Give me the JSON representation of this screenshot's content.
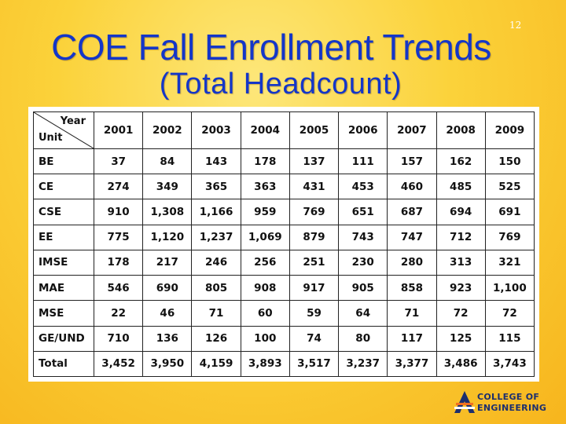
{
  "slide": {
    "number": "12",
    "title_line1": "COE Fall Enrollment Trends",
    "title_line2": "(Total Headcount)"
  },
  "table": {
    "corner_top": "Year",
    "corner_bottom": "Unit",
    "years": [
      "2001",
      "2002",
      "2003",
      "2004",
      "2005",
      "2006",
      "2007",
      "2008",
      "2009"
    ],
    "rows": [
      {
        "unit": "BE",
        "values": [
          "37",
          "84",
          "143",
          "178",
          "137",
          "111",
          "157",
          "162",
          "150"
        ]
      },
      {
        "unit": "CE",
        "values": [
          "274",
          "349",
          "365",
          "363",
          "431",
          "453",
          "460",
          "485",
          "525"
        ]
      },
      {
        "unit": "CSE",
        "values": [
          "910",
          "1,308",
          "1,166",
          "959",
          "769",
          "651",
          "687",
          "694",
          "691"
        ]
      },
      {
        "unit": "EE",
        "values": [
          "775",
          "1,120",
          "1,237",
          "1,069",
          "879",
          "743",
          "747",
          "712",
          "769"
        ]
      },
      {
        "unit": "IMSE",
        "values": [
          "178",
          "217",
          "246",
          "256",
          "251",
          "230",
          "280",
          "313",
          "321"
        ]
      },
      {
        "unit": "MAE",
        "values": [
          "546",
          "690",
          "805",
          "908",
          "917",
          "905",
          "858",
          "923",
          "1,100"
        ]
      },
      {
        "unit": "MSE",
        "values": [
          "22",
          "46",
          "71",
          "60",
          "59",
          "64",
          "71",
          "72",
          "72"
        ]
      },
      {
        "unit": "GE/UND",
        "values": [
          "710",
          "136",
          "126",
          "100",
          "74",
          "80",
          "117",
          "125",
          "115"
        ]
      },
      {
        "unit": "Total",
        "values": [
          "3,452",
          "3,950",
          "4,159",
          "3,893",
          "3,517",
          "3,237",
          "3,377",
          "3,486",
          "3,743"
        ]
      }
    ]
  },
  "logo": {
    "line1": "COLLEGE OF",
    "line2": "ENGINEERING",
    "icon": "ut-arlington-a-logo-icon"
  },
  "colors": {
    "title": "#1436c8",
    "background": "#fbd23a",
    "logo_navy": "#1d2f6e",
    "logo_orange": "#f36f21"
  }
}
